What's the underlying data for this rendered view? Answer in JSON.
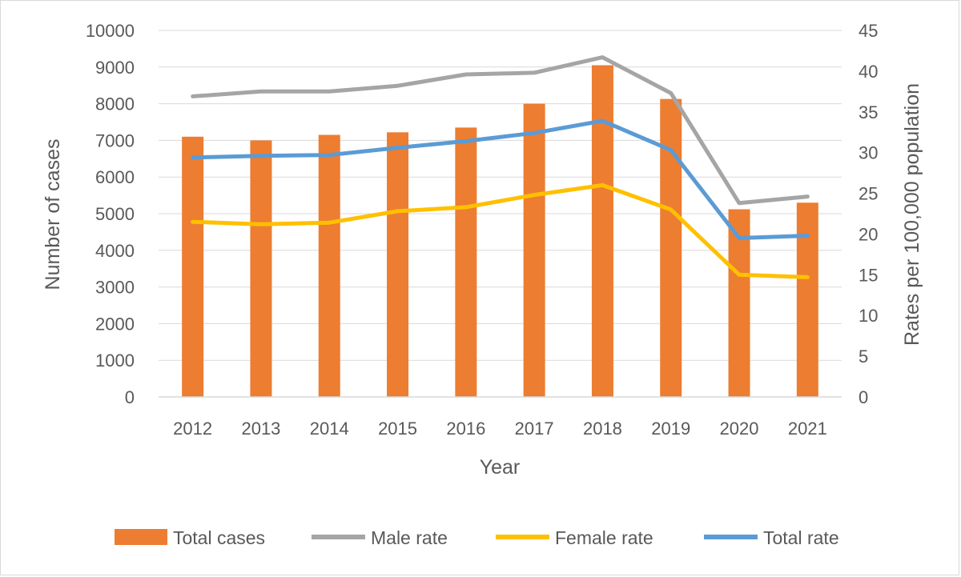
{
  "chart_data": {
    "type": "bar+line",
    "title": "",
    "categories": [
      "2012",
      "2013",
      "2014",
      "2015",
      "2016",
      "2017",
      "2018",
      "2019",
      "2020",
      "2021"
    ],
    "xlabel": "Year",
    "ylabel_left": "Number of cases",
    "ylabel_right": "Rates per 100,000 population",
    "ylim_left": [
      0,
      10000
    ],
    "ylim_right": [
      0,
      45
    ],
    "yticks_left": [
      "0",
      "1000",
      "2000",
      "3000",
      "4000",
      "5000",
      "6000",
      "7000",
      "8000",
      "9000",
      "10000"
    ],
    "yticks_right": [
      "0",
      "5",
      "10",
      "15",
      "20",
      "25",
      "30",
      "35",
      "40",
      "45"
    ],
    "grid": "horizontal",
    "legend_position": "bottom",
    "series": [
      {
        "name": "Total cases",
        "kind": "bar",
        "axis": "left",
        "color": "#ED7D31",
        "values": [
          7100,
          7000,
          7150,
          7220,
          7350,
          8000,
          9050,
          8130,
          5120,
          5300
        ]
      },
      {
        "name": "Male rate",
        "kind": "line",
        "axis": "right",
        "color": "#A5A5A5",
        "values": [
          36.9,
          37.5,
          37.5,
          38.2,
          39.6,
          39.8,
          41.7,
          37.3,
          23.8,
          24.6
        ]
      },
      {
        "name": "Female rate",
        "kind": "line",
        "axis": "right",
        "color": "#FFC000",
        "values": [
          21.5,
          21.2,
          21.4,
          22.8,
          23.3,
          24.8,
          26.0,
          23.0,
          15.0,
          14.7
        ]
      },
      {
        "name": "Total rate",
        "kind": "line",
        "axis": "right",
        "color": "#5B9BD5",
        "values": [
          29.4,
          29.6,
          29.7,
          30.6,
          31.4,
          32.4,
          33.9,
          30.3,
          19.5,
          19.8
        ]
      }
    ]
  }
}
